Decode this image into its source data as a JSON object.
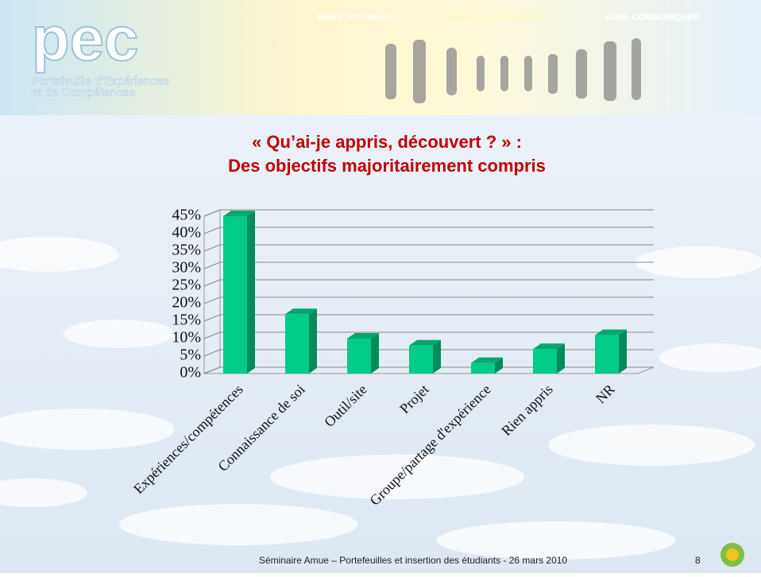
{
  "header": {
    "logo": "pec",
    "logo_subtitle_1": "Portefeuille d'Expériences",
    "logo_subtitle_2": "et de Compétences",
    "tagline_1": "FAIRE SON BILAN",
    "tagline_2": "CONSTRUIRE SON PROJET",
    "tagline_3": "AGIR, COMMUNIQUER"
  },
  "chart_data": {
    "type": "bar",
    "title_line_1": "« Qu’ai-je appris, découvert ? » :",
    "title_line_2": "Des objectifs majoritairement compris",
    "categories": [
      "Expériences/compétences",
      "Connaissance de soi",
      "Outil/site",
      "Projet",
      "Groupe/partage d'expérience",
      "Rien appris",
      "NR"
    ],
    "values": [
      45,
      17,
      10,
      8,
      3,
      7,
      11
    ],
    "color": "#00cc88",
    "ylim": [
      0,
      45
    ],
    "yticks": [
      {
        "value": 0,
        "label": "0%"
      },
      {
        "value": 5,
        "label": "5%"
      },
      {
        "value": 10,
        "label": "10%"
      },
      {
        "value": 15,
        "label": "15%"
      },
      {
        "value": 20,
        "label": "20%"
      },
      {
        "value": 25,
        "label": "25%"
      },
      {
        "value": 30,
        "label": "30%"
      },
      {
        "value": 35,
        "label": "35%"
      },
      {
        "value": 40,
        "label": "40%"
      },
      {
        "value": 45,
        "label": "45%"
      }
    ],
    "grid": true
  },
  "footer": {
    "text": "Séminaire Amue – Portefeuilles et insertion des étudiants - 26 mars 2010",
    "page": "8"
  }
}
